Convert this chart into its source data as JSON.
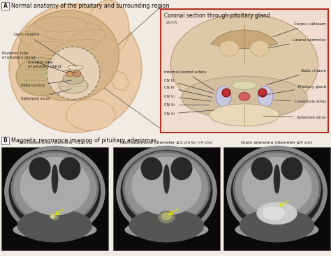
{
  "title_A": "Normal anatomy of the pituitary and surrounding region",
  "title_B": "Magnetic resonance imaging of pituitary adenomas",
  "label_A": "A",
  "label_B": "B",
  "coronal_title": "Coronal section through pituitary gland",
  "brain_label": "BRAIN",
  "mri_labels": [
    "Microadenoma (diameter <1 cm)",
    "Macroadenoma (diameter ≥1 cm to <4 cm)",
    "Giant adenoma (diameter ≥4 cm)"
  ],
  "bg_color": "#f0ebe4",
  "skin_color": "#e8c9a8",
  "skin_dark": "#d4a87a",
  "brain_fill": "#c8a87a",
  "brain_fold": "#b89060",
  "gyri_color": "#d4b488",
  "sella_color": "#c8b898",
  "pituitary_red": "#c04040",
  "pituitary_dark": "#802020",
  "sphenoid_color": "#d8c8a8",
  "coronal_bg": "#f0ddd0",
  "coronal_border": "#b03020",
  "coronal_brain_fill": "#d4c0a8",
  "corpus_color": "#c8a878",
  "cavernous_red": "#c03030",
  "cavernous_blue": "#6080c0",
  "text_dark": "#1a1a1a",
  "text_mid": "#444444",
  "arrow_color": "#333333",
  "mri_dark": "#111111",
  "mri_skull": "#888888",
  "mri_brain_gray": "#aaaaaa",
  "mri_white": "#cccccc",
  "mri_vent": "#333333",
  "mri_bright": "#dddddd",
  "yellow_arrow": "#dddd00"
}
